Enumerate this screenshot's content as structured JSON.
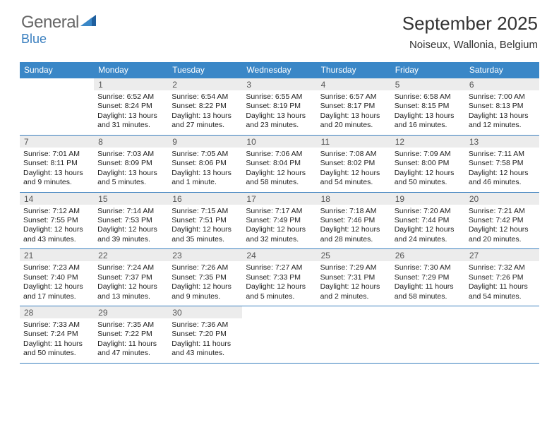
{
  "brand": {
    "general": "General",
    "blue": "Blue"
  },
  "header": {
    "month_title": "September 2025",
    "location": "Noiseux, Wallonia, Belgium"
  },
  "colors": {
    "header_bg": "#3a87c7",
    "rule": "#3a7fbf",
    "daynum_bg": "#ececec"
  },
  "dow": [
    "Sunday",
    "Monday",
    "Tuesday",
    "Wednesday",
    "Thursday",
    "Friday",
    "Saturday"
  ],
  "weeks": [
    [
      {
        "n": "",
        "sr": "",
        "ss": "",
        "dl": ""
      },
      {
        "n": "1",
        "sr": "Sunrise: 6:52 AM",
        "ss": "Sunset: 8:24 PM",
        "dl": "Daylight: 13 hours and 31 minutes."
      },
      {
        "n": "2",
        "sr": "Sunrise: 6:54 AM",
        "ss": "Sunset: 8:22 PM",
        "dl": "Daylight: 13 hours and 27 minutes."
      },
      {
        "n": "3",
        "sr": "Sunrise: 6:55 AM",
        "ss": "Sunset: 8:19 PM",
        "dl": "Daylight: 13 hours and 23 minutes."
      },
      {
        "n": "4",
        "sr": "Sunrise: 6:57 AM",
        "ss": "Sunset: 8:17 PM",
        "dl": "Daylight: 13 hours and 20 minutes."
      },
      {
        "n": "5",
        "sr": "Sunrise: 6:58 AM",
        "ss": "Sunset: 8:15 PM",
        "dl": "Daylight: 13 hours and 16 minutes."
      },
      {
        "n": "6",
        "sr": "Sunrise: 7:00 AM",
        "ss": "Sunset: 8:13 PM",
        "dl": "Daylight: 13 hours and 12 minutes."
      }
    ],
    [
      {
        "n": "7",
        "sr": "Sunrise: 7:01 AM",
        "ss": "Sunset: 8:11 PM",
        "dl": "Daylight: 13 hours and 9 minutes."
      },
      {
        "n": "8",
        "sr": "Sunrise: 7:03 AM",
        "ss": "Sunset: 8:09 PM",
        "dl": "Daylight: 13 hours and 5 minutes."
      },
      {
        "n": "9",
        "sr": "Sunrise: 7:05 AM",
        "ss": "Sunset: 8:06 PM",
        "dl": "Daylight: 13 hours and 1 minute."
      },
      {
        "n": "10",
        "sr": "Sunrise: 7:06 AM",
        "ss": "Sunset: 8:04 PM",
        "dl": "Daylight: 12 hours and 58 minutes."
      },
      {
        "n": "11",
        "sr": "Sunrise: 7:08 AM",
        "ss": "Sunset: 8:02 PM",
        "dl": "Daylight: 12 hours and 54 minutes."
      },
      {
        "n": "12",
        "sr": "Sunrise: 7:09 AM",
        "ss": "Sunset: 8:00 PM",
        "dl": "Daylight: 12 hours and 50 minutes."
      },
      {
        "n": "13",
        "sr": "Sunrise: 7:11 AM",
        "ss": "Sunset: 7:58 PM",
        "dl": "Daylight: 12 hours and 46 minutes."
      }
    ],
    [
      {
        "n": "14",
        "sr": "Sunrise: 7:12 AM",
        "ss": "Sunset: 7:55 PM",
        "dl": "Daylight: 12 hours and 43 minutes."
      },
      {
        "n": "15",
        "sr": "Sunrise: 7:14 AM",
        "ss": "Sunset: 7:53 PM",
        "dl": "Daylight: 12 hours and 39 minutes."
      },
      {
        "n": "16",
        "sr": "Sunrise: 7:15 AM",
        "ss": "Sunset: 7:51 PM",
        "dl": "Daylight: 12 hours and 35 minutes."
      },
      {
        "n": "17",
        "sr": "Sunrise: 7:17 AM",
        "ss": "Sunset: 7:49 PM",
        "dl": "Daylight: 12 hours and 32 minutes."
      },
      {
        "n": "18",
        "sr": "Sunrise: 7:18 AM",
        "ss": "Sunset: 7:46 PM",
        "dl": "Daylight: 12 hours and 28 minutes."
      },
      {
        "n": "19",
        "sr": "Sunrise: 7:20 AM",
        "ss": "Sunset: 7:44 PM",
        "dl": "Daylight: 12 hours and 24 minutes."
      },
      {
        "n": "20",
        "sr": "Sunrise: 7:21 AM",
        "ss": "Sunset: 7:42 PM",
        "dl": "Daylight: 12 hours and 20 minutes."
      }
    ],
    [
      {
        "n": "21",
        "sr": "Sunrise: 7:23 AM",
        "ss": "Sunset: 7:40 PM",
        "dl": "Daylight: 12 hours and 17 minutes."
      },
      {
        "n": "22",
        "sr": "Sunrise: 7:24 AM",
        "ss": "Sunset: 7:37 PM",
        "dl": "Daylight: 12 hours and 13 minutes."
      },
      {
        "n": "23",
        "sr": "Sunrise: 7:26 AM",
        "ss": "Sunset: 7:35 PM",
        "dl": "Daylight: 12 hours and 9 minutes."
      },
      {
        "n": "24",
        "sr": "Sunrise: 7:27 AM",
        "ss": "Sunset: 7:33 PM",
        "dl": "Daylight: 12 hours and 5 minutes."
      },
      {
        "n": "25",
        "sr": "Sunrise: 7:29 AM",
        "ss": "Sunset: 7:31 PM",
        "dl": "Daylight: 12 hours and 2 minutes."
      },
      {
        "n": "26",
        "sr": "Sunrise: 7:30 AM",
        "ss": "Sunset: 7:29 PM",
        "dl": "Daylight: 11 hours and 58 minutes."
      },
      {
        "n": "27",
        "sr": "Sunrise: 7:32 AM",
        "ss": "Sunset: 7:26 PM",
        "dl": "Daylight: 11 hours and 54 minutes."
      }
    ],
    [
      {
        "n": "28",
        "sr": "Sunrise: 7:33 AM",
        "ss": "Sunset: 7:24 PM",
        "dl": "Daylight: 11 hours and 50 minutes."
      },
      {
        "n": "29",
        "sr": "Sunrise: 7:35 AM",
        "ss": "Sunset: 7:22 PM",
        "dl": "Daylight: 11 hours and 47 minutes."
      },
      {
        "n": "30",
        "sr": "Sunrise: 7:36 AM",
        "ss": "Sunset: 7:20 PM",
        "dl": "Daylight: 11 hours and 43 minutes."
      },
      {
        "n": "",
        "sr": "",
        "ss": "",
        "dl": ""
      },
      {
        "n": "",
        "sr": "",
        "ss": "",
        "dl": ""
      },
      {
        "n": "",
        "sr": "",
        "ss": "",
        "dl": ""
      },
      {
        "n": "",
        "sr": "",
        "ss": "",
        "dl": ""
      }
    ]
  ]
}
